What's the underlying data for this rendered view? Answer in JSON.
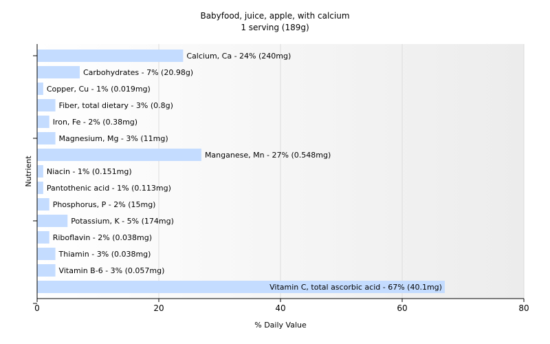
{
  "chart_data": {
    "type": "bar",
    "orientation": "horizontal",
    "title": "Babyfood, juice, apple, with calcium",
    "subtitle": "1 serving (189g)",
    "xlabel": "% Daily Value",
    "ylabel": "Nutrient",
    "xlim": [
      0,
      80
    ],
    "xticks": [
      0,
      20,
      40,
      60,
      80
    ],
    "grid": true,
    "bar_color": "#c4dcff",
    "categories": [
      "Calcium, Ca",
      "Carbohydrates",
      "Copper, Cu",
      "Fiber, total dietary",
      "Iron, Fe",
      "Magnesium, Mg",
      "Manganese, Mn",
      "Niacin",
      "Pantothenic acid",
      "Phosphorus, P",
      "Potassium, K",
      "Riboflavin",
      "Thiamin",
      "Vitamin B-6",
      "Vitamin C, total ascorbic acid"
    ],
    "values": [
      24,
      7,
      1,
      3,
      2,
      3,
      27,
      1,
      1,
      2,
      5,
      2,
      3,
      3,
      67
    ],
    "labels": [
      "Calcium, Ca - 24% (240mg)",
      "Carbohydrates - 7% (20.98g)",
      "Copper, Cu - 1% (0.019mg)",
      "Fiber, total dietary - 3% (0.8g)",
      "Iron, Fe - 2% (0.38mg)",
      "Magnesium, Mg - 3% (11mg)",
      "Manganese, Mn - 27% (0.548mg)",
      "Niacin - 1% (0.151mg)",
      "Pantothenic acid - 1% (0.113mg)",
      "Phosphorus, P - 2% (15mg)",
      "Potassium, K - 5% (174mg)",
      "Riboflavin - 2% (0.038mg)",
      "Thiamin - 3% (0.038mg)",
      "Vitamin B-6 - 3% (0.057mg)",
      "Vitamin C, total ascorbic acid - 67% (40.1mg)"
    ]
  }
}
